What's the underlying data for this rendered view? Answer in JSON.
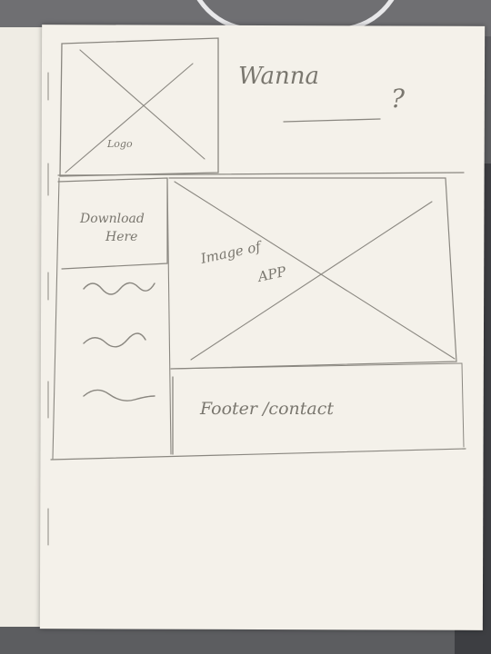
{
  "header": {
    "logo_label": "Logo",
    "headline": "Wanna",
    "question_mark": "?"
  },
  "sidebar": {
    "download_label_line1": "Download",
    "download_label_line2": "Here"
  },
  "main": {
    "image_label_line1": "Image of",
    "image_label_line2": "APP"
  },
  "footer": {
    "label": "Footer /contact"
  }
}
